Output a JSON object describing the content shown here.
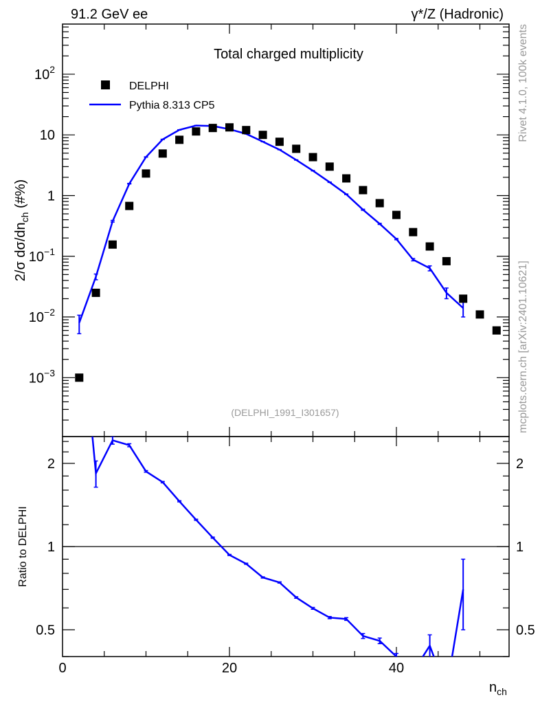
{
  "header": {
    "left": "91.2 GeV ee",
    "right": "γ*/Z (Hadronic)"
  },
  "side_text": {
    "rivet": "Rivet 4.1.0,  100k events",
    "mcplots": "mcplots.cern.ch [arXiv:2401.10621]"
  },
  "colors": {
    "data": "#000000",
    "mc": "#0000ff",
    "grey": "#999999"
  },
  "chart_data": {
    "type": "scatter",
    "title": "Total charged multiplicity",
    "analysis_id": "(DELPHI_1991_I301657)",
    "xlabel": "n",
    "xlabel_sub": "ch",
    "ylabel": "2/σ  dσ/dn",
    "ylabel_sub": "ch",
    "ylabel_suffix": " (#%)",
    "ratio_ylabel": "Ratio to DELPHI",
    "xlim": [
      0,
      53.5
    ],
    "ylim": [
      0.000107,
      670
    ],
    "yscale": "log",
    "ratio_ylim": [
      0.4,
      2.5
    ],
    "ratio_yscale": "log",
    "x_ticks": [
      {
        "v": 0,
        "label": "0"
      },
      {
        "v": 20,
        "label": "20"
      },
      {
        "v": 40,
        "label": "40"
      }
    ],
    "y_ticks": [
      {
        "v": 100,
        "base": "10",
        "exp": "2"
      },
      {
        "v": 10,
        "base": "10",
        "exp": ""
      },
      {
        "v": 1,
        "base": "1",
        "exp": ""
      },
      {
        "v": 0.1,
        "base": "10",
        "exp": "−1"
      },
      {
        "v": 0.01,
        "base": "10",
        "exp": "−2"
      },
      {
        "v": 0.001,
        "base": "10",
        "exp": "−3"
      }
    ],
    "ratio_ticks": [
      {
        "v": 2,
        "label": "2"
      },
      {
        "v": 1,
        "label": "1"
      },
      {
        "v": 0.5,
        "label": "0.5"
      }
    ],
    "legend": {
      "position": "top-left",
      "entries": [
        "DELPHI",
        "Pythia 8.313 CP5"
      ]
    },
    "series": [
      {
        "name": "DELPHI",
        "x": [
          2,
          4,
          6,
          8,
          10,
          12,
          14,
          16,
          18,
          20,
          22,
          24,
          26,
          28,
          30,
          32,
          34,
          36,
          38,
          40,
          42,
          44,
          46,
          48,
          50,
          52
        ],
        "y": [
          0.001,
          0.025,
          0.156,
          0.675,
          2.31,
          4.93,
          8.3,
          11.4,
          13.0,
          13.3,
          12.0,
          10.0,
          7.7,
          5.9,
          4.3,
          3.0,
          1.92,
          1.23,
          0.75,
          0.48,
          0.25,
          0.145,
          0.083,
          0.02,
          0.011,
          0.006
        ]
      },
      {
        "name": "Pythia 8.313 CP5",
        "x": [
          2,
          4,
          6,
          8,
          10,
          12,
          14,
          16,
          18,
          20,
          22,
          24,
          26,
          28,
          30,
          32,
          34,
          36,
          38,
          40,
          42,
          44,
          46,
          48
        ],
        "y": [
          0.008,
          0.046,
          0.378,
          1.57,
          4.32,
          8.43,
          12.1,
          14.25,
          14.0,
          12.4,
          10.4,
          7.73,
          5.71,
          3.86,
          2.57,
          1.66,
          1.05,
          0.584,
          0.342,
          0.192,
          0.088,
          0.0635,
          0.025,
          0.014
        ],
        "err": [
          0.0027,
          0.005,
          0.012,
          0.02,
          0.03,
          0.05,
          0.06,
          0.07,
          0.07,
          0.06,
          0.05,
          0.04,
          0.03,
          0.025,
          0.02,
          0.015,
          0.012,
          0.012,
          0.008,
          0.005,
          0.004,
          0.006,
          0.005,
          0.004
        ]
      }
    ]
  }
}
